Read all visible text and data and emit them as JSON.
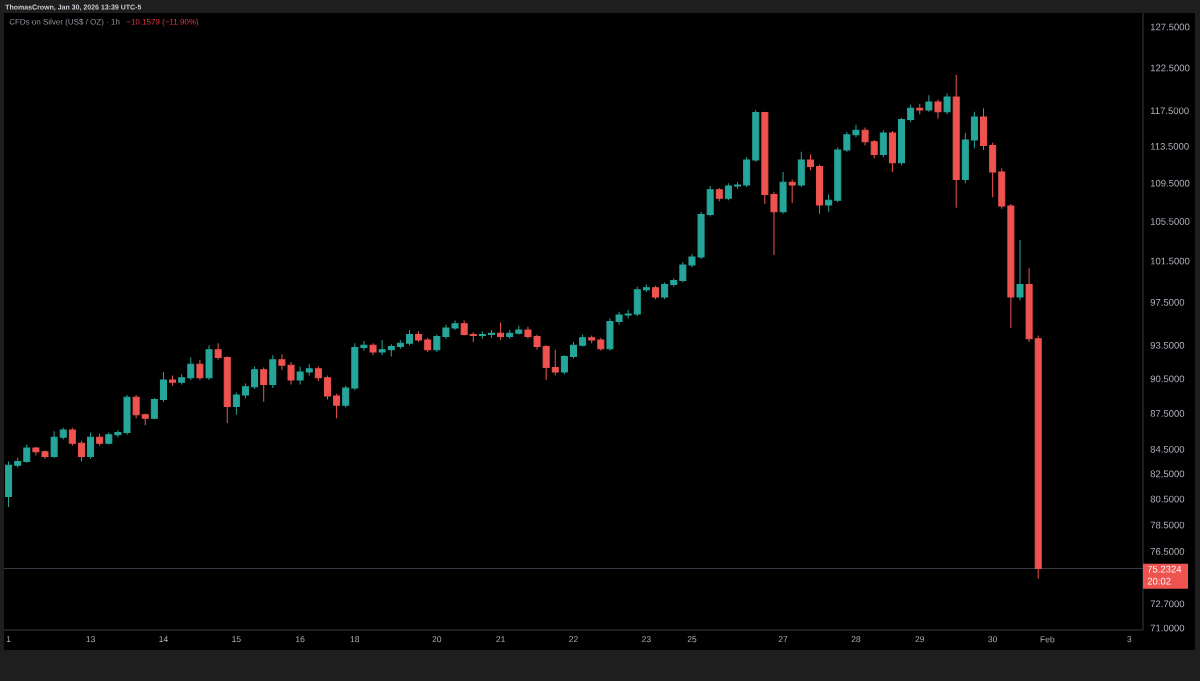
{
  "chart_data": {
    "type": "candlestick",
    "title": "CFDs on Silver (US$ / OZ) · 1h",
    "subtitle": "−10.1579 (−11.90%)",
    "annotations": [
      "ThomasCrown, Jan 30, 2026 13:39 UTC-5",
      "20:02"
    ],
    "log": "y",
    "ylim": [
      70.87,
      129.25
    ],
    "yticks": [
      {
        "value": 127.5,
        "label": "127.5000"
      },
      {
        "value": 122.5,
        "label": "122.5000"
      },
      {
        "value": 117.5,
        "label": "117.5000"
      },
      {
        "value": 113.5,
        "label": "113.5000"
      },
      {
        "value": 109.5,
        "label": "109.5000"
      },
      {
        "value": 105.5,
        "label": "105.5000"
      },
      {
        "value": 101.5,
        "label": "101.5000"
      },
      {
        "value": 97.5,
        "label": "97.5000"
      },
      {
        "value": 93.5,
        "label": "93.5000"
      },
      {
        "value": 90.5,
        "label": "90.5000"
      },
      {
        "value": 87.5,
        "label": "87.5000"
      },
      {
        "value": 84.5,
        "label": "84.5000"
      },
      {
        "value": 82.5,
        "label": "82.5000"
      },
      {
        "value": 80.5,
        "label": "80.5000"
      },
      {
        "value": 78.5,
        "label": "78.5000"
      },
      {
        "value": 76.5,
        "label": "76.5000"
      },
      {
        "value": 72.7,
        "label": "72.7000"
      },
      {
        "value": 71.0,
        "label": "71.0000"
      }
    ],
    "ref_lines": [
      {
        "axis": "y",
        "value": 75.2324,
        "label": "75.2324",
        "color": "#363a45"
      }
    ],
    "categories": [
      "1",
      null,
      null,
      null,
      null,
      null,
      null,
      null,
      null,
      "13",
      null,
      null,
      null,
      null,
      null,
      null,
      null,
      "14",
      null,
      null,
      null,
      null,
      null,
      null,
      null,
      "15",
      null,
      null,
      null,
      null,
      null,
      null,
      "16",
      null,
      null,
      null,
      null,
      null,
      "18",
      null,
      null,
      null,
      null,
      null,
      null,
      null,
      null,
      "20",
      null,
      null,
      null,
      null,
      null,
      null,
      "21",
      null,
      null,
      null,
      null,
      null,
      null,
      null,
      "22",
      null,
      null,
      null,
      null,
      null,
      null,
      null,
      "23",
      null,
      null,
      null,
      null,
      "25",
      null,
      null,
      null,
      null,
      null,
      null,
      null,
      null,
      null,
      "27",
      null,
      null,
      null,
      null,
      null,
      null,
      null,
      "28",
      null,
      null,
      null,
      null,
      null,
      null,
      "29",
      null,
      null,
      null,
      null,
      null,
      null,
      null,
      "30",
      null,
      null,
      null,
      null,
      null,
      "Feb",
      null,
      null,
      null,
      null,
      null,
      null,
      null,
      null,
      "3",
      null
    ],
    "ohlc": [
      [
        80.7,
        83.5,
        79.9,
        83.2
      ],
      [
        83.2,
        83.8,
        83.0,
        83.5
      ],
      [
        83.5,
        84.9,
        83.4,
        84.6
      ],
      [
        84.6,
        84.7,
        84.0,
        84.3
      ],
      [
        84.3,
        84.4,
        83.7,
        83.9
      ],
      [
        83.9,
        86.0,
        83.8,
        85.5
      ],
      [
        85.5,
        86.3,
        85.3,
        86.1
      ],
      [
        86.1,
        86.3,
        84.8,
        85.0
      ],
      [
        85.0,
        85.2,
        83.5,
        83.9
      ],
      [
        83.9,
        85.9,
        83.7,
        85.5
      ],
      [
        85.5,
        85.8,
        84.8,
        85.0
      ],
      [
        85.0,
        85.9,
        84.9,
        85.7
      ],
      [
        85.7,
        86.1,
        85.5,
        85.9
      ],
      [
        85.9,
        89.1,
        85.7,
        88.9
      ],
      [
        88.9,
        89.1,
        87.1,
        87.4
      ],
      [
        87.4,
        87.5,
        86.5,
        87.1
      ],
      [
        87.1,
        88.8,
        87.0,
        88.7
      ],
      [
        88.7,
        91.1,
        88.5,
        90.4
      ],
      [
        90.4,
        90.8,
        89.9,
        90.2
      ],
      [
        90.2,
        90.9,
        90.0,
        90.6
      ],
      [
        90.6,
        92.4,
        90.4,
        91.8
      ],
      [
        91.8,
        92.2,
        90.4,
        90.6
      ],
      [
        90.6,
        93.5,
        90.4,
        93.1
      ],
      [
        93.1,
        93.7,
        92.2,
        92.4
      ],
      [
        92.4,
        92.5,
        86.7,
        88.1
      ],
      [
        88.1,
        89.3,
        87.4,
        89.1
      ],
      [
        89.1,
        90.1,
        88.8,
        89.8
      ],
      [
        89.8,
        91.6,
        89.6,
        91.3
      ],
      [
        91.3,
        91.5,
        88.5,
        90.0
      ],
      [
        90.0,
        92.6,
        89.7,
        92.2
      ],
      [
        92.2,
        92.7,
        91.3,
        91.7
      ],
      [
        91.7,
        92.0,
        90.0,
        90.4
      ],
      [
        90.4,
        91.6,
        90.0,
        91.1
      ],
      [
        91.1,
        91.8,
        90.8,
        91.4
      ],
      [
        91.4,
        91.6,
        90.3,
        90.6
      ],
      [
        90.6,
        90.8,
        88.7,
        89.0
      ],
      [
        89.0,
        89.2,
        87.1,
        88.2
      ],
      [
        88.2,
        89.9,
        88.0,
        89.7
      ],
      [
        89.7,
        93.7,
        89.5,
        93.3
      ],
      [
        93.3,
        93.9,
        93.0,
        93.5
      ],
      [
        93.5,
        93.7,
        92.6,
        92.9
      ],
      [
        92.9,
        94.0,
        92.6,
        93.1
      ],
      [
        93.1,
        93.6,
        92.5,
        93.4
      ],
      [
        93.4,
        94.0,
        93.2,
        93.7
      ],
      [
        93.7,
        94.9,
        93.5,
        94.5
      ],
      [
        94.5,
        94.8,
        93.8,
        94.0
      ],
      [
        94.0,
        94.2,
        92.9,
        93.1
      ],
      [
        93.1,
        94.5,
        92.9,
        94.3
      ],
      [
        94.3,
        95.4,
        94.1,
        95.1
      ],
      [
        95.1,
        95.8,
        94.9,
        95.5
      ],
      [
        95.5,
        95.8,
        94.4,
        94.5
      ],
      [
        94.5,
        94.7,
        93.8,
        94.4
      ],
      [
        94.4,
        94.8,
        94.1,
        94.5
      ],
      [
        94.5,
        94.9,
        94.2,
        94.6
      ],
      [
        94.6,
        95.6,
        94.0,
        94.3
      ],
      [
        94.3,
        94.9,
        94.1,
        94.6
      ],
      [
        94.6,
        95.3,
        94.5,
        94.9
      ],
      [
        94.9,
        95.2,
        94.1,
        94.3
      ],
      [
        94.3,
        94.5,
        93.1,
        93.4
      ],
      [
        93.4,
        93.5,
        90.4,
        91.5
      ],
      [
        91.5,
        93.1,
        90.8,
        91.1
      ],
      [
        91.1,
        92.6,
        90.9,
        92.5
      ],
      [
        92.5,
        93.8,
        92.3,
        93.5
      ],
      [
        93.5,
        94.5,
        93.4,
        94.2
      ],
      [
        94.2,
        94.4,
        93.7,
        94.0
      ],
      [
        94.0,
        94.2,
        93.0,
        93.2
      ],
      [
        93.2,
        96.0,
        93.0,
        95.7
      ],
      [
        95.7,
        96.6,
        95.4,
        96.3
      ],
      [
        96.3,
        96.8,
        96.0,
        96.4
      ],
      [
        96.4,
        99.0,
        96.2,
        98.7
      ],
      [
        98.7,
        99.2,
        98.5,
        98.9
      ],
      [
        98.9,
        99.1,
        97.8,
        98.0
      ],
      [
        98.0,
        99.4,
        97.8,
        99.2
      ],
      [
        99.2,
        99.8,
        99.0,
        99.6
      ],
      [
        99.6,
        101.4,
        99.4,
        101.1
      ],
      [
        101.1,
        102.2,
        100.9,
        101.9
      ],
      [
        101.9,
        106.5,
        101.7,
        106.2
      ],
      [
        106.2,
        109.2,
        106.0,
        108.8
      ],
      [
        108.8,
        109.0,
        107.6,
        107.9
      ],
      [
        107.9,
        109.5,
        107.7,
        109.2
      ],
      [
        109.2,
        109.6,
        108.9,
        109.3
      ],
      [
        109.3,
        112.3,
        109.1,
        112.0
      ],
      [
        112.0,
        117.6,
        111.8,
        117.3
      ],
      [
        117.3,
        117.4,
        107.3,
        108.3
      ],
      [
        108.3,
        108.6,
        102.1,
        106.5
      ],
      [
        106.5,
        110.7,
        106.3,
        109.6
      ],
      [
        109.6,
        109.9,
        107.4,
        109.3
      ],
      [
        109.3,
        112.9,
        109.1,
        112.0
      ],
      [
        112.0,
        112.6,
        110.9,
        111.3
      ],
      [
        111.3,
        111.5,
        106.3,
        107.2
      ],
      [
        107.2,
        108.3,
        106.5,
        107.7
      ],
      [
        107.7,
        113.4,
        107.5,
        113.1
      ],
      [
        113.1,
        115.1,
        112.9,
        114.8
      ],
      [
        114.8,
        115.9,
        114.5,
        115.3
      ],
      [
        115.3,
        115.6,
        113.6,
        114.0
      ],
      [
        114.0,
        114.2,
        112.2,
        112.6
      ],
      [
        112.6,
        115.3,
        112.3,
        115.0
      ],
      [
        115.0,
        115.2,
        110.7,
        111.7
      ],
      [
        111.7,
        116.7,
        111.4,
        116.5
      ],
      [
        116.5,
        118.2,
        116.2,
        117.8
      ],
      [
        117.8,
        118.3,
        117.1,
        117.6
      ],
      [
        117.6,
        119.3,
        117.4,
        118.5
      ],
      [
        118.5,
        118.8,
        116.6,
        117.4
      ],
      [
        117.4,
        119.5,
        117.1,
        119.1
      ],
      [
        119.1,
        121.7,
        106.9,
        109.9
      ],
      [
        109.9,
        115.0,
        109.5,
        114.2
      ],
      [
        114.2,
        117.4,
        113.3,
        116.8
      ],
      [
        116.8,
        117.8,
        113.1,
        113.6
      ],
      [
        113.6,
        113.9,
        108.0,
        110.7
      ],
      [
        110.7,
        111.1,
        106.8,
        107.1
      ],
      [
        107.1,
        107.3,
        95.1,
        98.0
      ],
      [
        98.0,
        103.6,
        97.7,
        99.2
      ],
      [
        99.2,
        100.8,
        93.8,
        94.1
      ],
      [
        94.1,
        94.4,
        74.5,
        75.2324
      ],
      null,
      null,
      null,
      null,
      null,
      null,
      null,
      null,
      null,
      null,
      null
    ],
    "colors": [
      "#26a69a",
      "#26a69a",
      "#26a69a",
      "#ef5350",
      "#ef5350",
      "#26a69a",
      "#26a69a",
      "#ef5350",
      "#ef5350",
      "#26a69a",
      "#ef5350",
      "#26a69a",
      "#26a69a",
      "#26a69a",
      "#ef5350",
      "#ef5350",
      "#26a69a",
      "#26a69a",
      "#ef5350",
      "#26a69a",
      "#26a69a",
      "#ef5350",
      "#26a69a",
      "#ef5350",
      "#ef5350",
      "#26a69a",
      "#26a69a",
      "#26a69a",
      "#ef5350",
      "#26a69a",
      "#ef5350",
      "#ef5350",
      "#26a69a",
      "#26a69a",
      "#ef5350",
      "#ef5350",
      "#ef5350",
      "#26a69a",
      "#26a69a",
      "#26a69a",
      "#ef5350",
      "#26a69a",
      "#26a69a",
      "#26a69a",
      "#26a69a",
      "#ef5350",
      "#ef5350",
      "#26a69a",
      "#26a69a",
      "#26a69a",
      "#ef5350",
      "#ef5350",
      "#26a69a",
      "#26a69a",
      "#ef5350",
      "#26a69a",
      "#26a69a",
      "#ef5350",
      "#ef5350",
      "#ef5350",
      "#ef5350",
      "#26a69a",
      "#26a69a",
      "#26a69a",
      "#ef5350",
      "#ef5350",
      "#26a69a",
      "#26a69a",
      "#26a69a",
      "#26a69a",
      "#26a69a",
      "#ef5350",
      "#26a69a",
      "#26a69a",
      "#26a69a",
      "#26a69a",
      "#26a69a",
      "#26a69a",
      "#ef5350",
      "#26a69a",
      "#26a69a",
      "#26a69a",
      "#26a69a",
      "#ef5350",
      "#ef5350",
      "#26a69a",
      "#ef5350",
      "#26a69a",
      "#ef5350",
      "#ef5350",
      "#26a69a",
      "#26a69a",
      "#26a69a",
      "#26a69a",
      "#ef5350",
      "#ef5350",
      "#26a69a",
      "#ef5350",
      "#26a69a",
      "#26a69a",
      "#ef5350",
      "#26a69a",
      "#ef5350",
      "#26a69a",
      "#ef5350",
      "#26a69a",
      "#26a69a",
      "#ef5350",
      "#ef5350",
      "#ef5350",
      "#ef5350",
      "#26a69a",
      "#ef5350",
      "#ef5350",
      null,
      null,
      null,
      null,
      null,
      null,
      null,
      null,
      null,
      null,
      null
    ]
  }
}
